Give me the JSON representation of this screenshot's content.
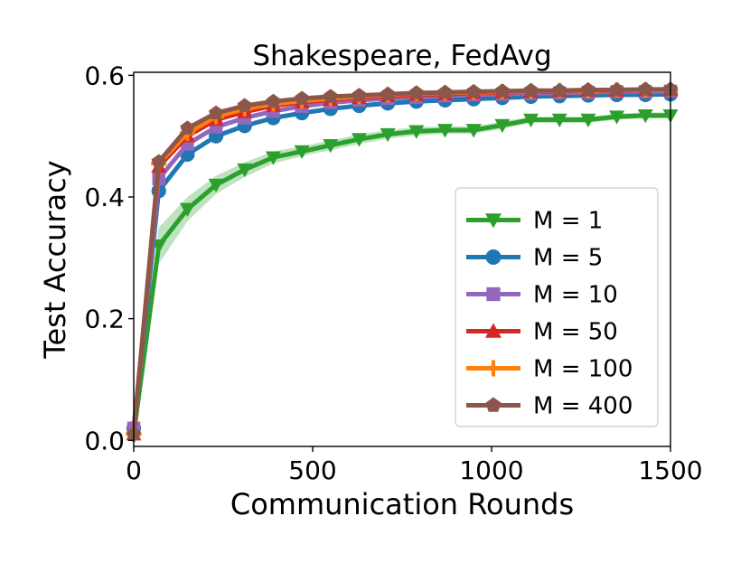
{
  "chart_data": {
    "type": "line",
    "title": "Shakespeare, FedAvg",
    "xlabel": "Communication Rounds",
    "ylabel": "Test Accuracy",
    "xlim": [
      0,
      1500
    ],
    "ylim": [
      -0.01,
      0.605
    ],
    "xticks": [
      0,
      500,
      1000,
      1500
    ],
    "xtick_labels": [
      "0",
      "500",
      "1000",
      "1500"
    ],
    "yticks": [
      0.0,
      0.2,
      0.4,
      0.6
    ],
    "ytick_labels": [
      "0.0",
      "0.2",
      "0.4",
      "0.6"
    ],
    "grid": false,
    "legend_position": "lower-right",
    "x": [
      0,
      70,
      150,
      230,
      310,
      390,
      470,
      550,
      630,
      710,
      790,
      870,
      950,
      1030,
      1110,
      1190,
      1270,
      1350,
      1430,
      1500
    ],
    "series": [
      {
        "name": "M = 1",
        "color": "#2ca02c",
        "marker": "triangle-down",
        "values": [
          0.01,
          0.32,
          0.38,
          0.42,
          0.445,
          0.465,
          0.475,
          0.485,
          0.495,
          0.503,
          0.508,
          0.51,
          0.51,
          0.518,
          0.527,
          0.527,
          0.527,
          0.532,
          0.534,
          0.534
        ],
        "band": [
          0.015,
          0.03,
          0.02,
          0.015,
          0.012,
          0.01,
          0.008,
          0.008,
          0.008,
          0.007,
          0.007,
          0.006,
          0.006,
          0.006,
          0.005,
          0.005,
          0.005,
          0.005,
          0.005,
          0.005
        ]
      },
      {
        "name": "M = 5",
        "color": "#1f77b4",
        "marker": "circle",
        "values": [
          0.02,
          0.41,
          0.47,
          0.5,
          0.517,
          0.53,
          0.538,
          0.545,
          0.55,
          0.554,
          0.557,
          0.559,
          0.561,
          0.563,
          0.565,
          0.566,
          0.567,
          0.568,
          0.568,
          0.569
        ]
      },
      {
        "name": "M = 10",
        "color": "#9467bd",
        "marker": "square",
        "values": [
          0.02,
          0.43,
          0.487,
          0.515,
          0.53,
          0.541,
          0.549,
          0.555,
          0.559,
          0.562,
          0.564,
          0.566,
          0.568,
          0.569,
          0.57,
          0.571,
          0.572,
          0.573,
          0.573,
          0.574
        ]
      },
      {
        "name": "M = 50",
        "color": "#d62728",
        "marker": "triangle-up",
        "values": [
          0.01,
          0.45,
          0.5,
          0.527,
          0.54,
          0.55,
          0.556,
          0.56,
          0.563,
          0.566,
          0.568,
          0.569,
          0.571,
          0.572,
          0.573,
          0.574,
          0.575,
          0.575,
          0.576,
          0.576
        ]
      },
      {
        "name": "M = 100",
        "color": "#ff7f0e",
        "marker": "plus",
        "values": [
          0.01,
          0.455,
          0.505,
          0.532,
          0.545,
          0.553,
          0.558,
          0.562,
          0.565,
          0.568,
          0.57,
          0.571,
          0.572,
          0.573,
          0.574,
          0.575,
          0.575,
          0.576,
          0.576,
          0.576
        ]
      },
      {
        "name": "M = 400",
        "color": "#8c564b",
        "marker": "pentagon",
        "values": [
          0.01,
          0.458,
          0.513,
          0.538,
          0.55,
          0.557,
          0.562,
          0.565,
          0.567,
          0.569,
          0.571,
          0.572,
          0.573,
          0.574,
          0.575,
          0.575,
          0.576,
          0.576,
          0.577,
          0.577
        ]
      }
    ]
  }
}
